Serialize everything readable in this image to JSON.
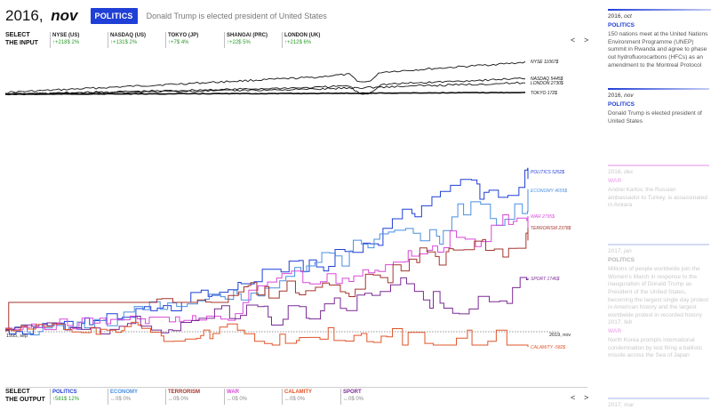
{
  "header": {
    "year": "2016,",
    "month": "nov",
    "badge": "POLITICS",
    "headline": "Donald Trump is elected president of United States"
  },
  "input": {
    "label_line1": "SELECT",
    "label_line2": "THE INPUT",
    "tickers": [
      {
        "name": "NYSE (US)",
        "value": "↑+218$  2%"
      },
      {
        "name": "NASDAQ (US)",
        "value": "↑+131$  2%"
      },
      {
        "name": "TOKYO (JP)",
        "value": "↑+7$  4%"
      },
      {
        "name": "SHANGAI (PRC)",
        "value": "↑+22$  5%"
      },
      {
        "name": "LONDON (UK)",
        "value": "↑+212$  6%"
      }
    ],
    "prev": "<",
    "next": ">"
  },
  "output": {
    "label_line1": "SELECT",
    "label_line2": "THE OUTPUT",
    "tickers": [
      {
        "name": "POLITICS",
        "value": "↑581$  12%",
        "color": "#1f3fd6",
        "neutral": false
      },
      {
        "name": "ECONOMY",
        "value": "↔0$  0%",
        "color": "#4a8fe0",
        "neutral": true
      },
      {
        "name": "TERRORISM",
        "value": "↔0$  0%",
        "color": "#a4362d",
        "neutral": true
      },
      {
        "name": "WAR",
        "value": "↔0$  0%",
        "color": "#d948d9",
        "neutral": true
      },
      {
        "name": "CALAMITY",
        "value": "↔0$  0%",
        "color": "#e0552a",
        "neutral": true
      },
      {
        "name": "SPORT",
        "value": "↔0$  0%",
        "color": "#7a2a95",
        "neutral": true
      }
    ],
    "prev": "<",
    "next": ">"
  },
  "markets": {
    "labels": [
      "NYSE 11067$",
      "NASDAQ 5445$",
      "LONDON 2730$",
      "TOKYO 172$"
    ]
  },
  "main": {
    "start_label": "1995, sep",
    "end_label": "2019, nov",
    "series": [
      {
        "name": "POLITICS",
        "label": "POLITICS 5252$",
        "color": "#1f3fd6"
      },
      {
        "name": "ECONOMY",
        "label": "ECONOMY 4655$",
        "color": "#4a8fe0"
      },
      {
        "name": "WAR",
        "label": "WAR 2795$",
        "color": "#d948d9"
      },
      {
        "name": "TERRORISM",
        "label": "TERRORISM 2378$",
        "color": "#a4362d"
      },
      {
        "name": "SPORT",
        "label": "SPORT 1746$",
        "color": "#7a2a95"
      },
      {
        "name": "CALAMITY",
        "label": "CALAMITY -582$",
        "color": "#e0552a"
      }
    ]
  },
  "events": [
    {
      "year": "2016,",
      "month": "oct",
      "category": "POLITICS",
      "cat_color": "#1f3fd6",
      "rule_color": "#1f3fd6",
      "faded": false,
      "text": "150 nations meet at the United Nations Environment Programme (UNEP) summit in Rwanda and agree to phase out hydrofluorocarbons (HFCs) as an amendment to the Montreal Protocol"
    },
    {
      "year": "2016,",
      "month": "nov",
      "category": "POLITICS",
      "cat_color": "#1f3fd6",
      "rule_color": "#1f3fd6",
      "faded": false,
      "text": "Donald Trump is elected president of United States"
    },
    {
      "year": "2016,",
      "month": "dec",
      "category": "WAR",
      "cat_color": "#efb6ef",
      "rule_color": "#f1c6f1",
      "faded": true,
      "text": "Andrei Karlov, the Russian ambassador to Turkey, is assassinated in Ankara"
    },
    {
      "year": "2017,",
      "month": "jan",
      "category": "POLITICS",
      "cat_color": "#b8b8b8",
      "rule_color": "#d4d9f6",
      "faded": true,
      "text": "Millions of people worldwide join the Women's March in response to the inauguration of Donald Trump as President of the United States, becoming the largest single day protest in American history and the largest worldwide protest in recorded history"
    },
    {
      "year": "2017,",
      "month": "feb",
      "category": "WAR",
      "cat_color": "#efb6ef",
      "rule_color": "#f1c6f1",
      "faded": true,
      "text": "North Korea prompts international condemnation by test firing a ballistic missile across the Sea of Japan"
    },
    {
      "year": "2017,",
      "month": "mar",
      "category": "",
      "cat_color": "#b8b8b8",
      "rule_color": "#d4d9f6",
      "faded": true,
      "text": ""
    }
  ]
}
